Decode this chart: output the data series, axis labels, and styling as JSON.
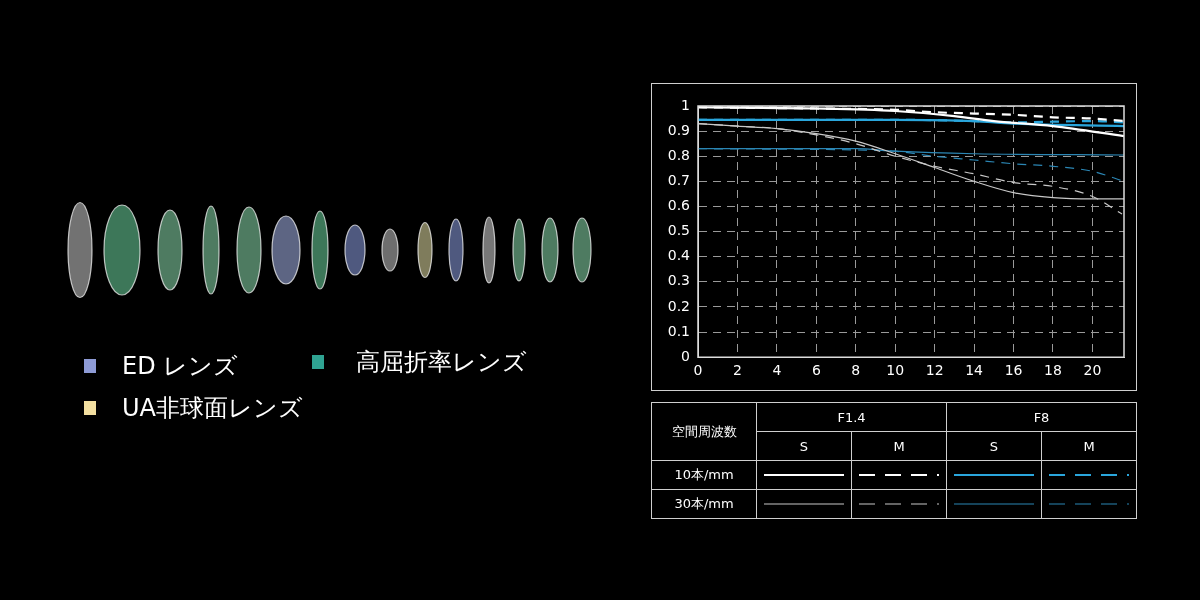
{
  "chart_data": {
    "type": "line",
    "xlim": [
      0,
      21.6
    ],
    "xticks": [
      0,
      2,
      4,
      6,
      8,
      10,
      12,
      14,
      16,
      18,
      20
    ],
    "ylim": [
      0,
      1
    ],
    "yticks": [
      0,
      0.1,
      0.2,
      0.3,
      0.4,
      0.5,
      0.6,
      0.7,
      0.8,
      0.9,
      1
    ],
    "grid": true,
    "series": [
      {
        "color": "#ffffff",
        "line_style": "solid",
        "x": [
          0,
          6,
          10,
          13,
          15,
          18,
          21.6
        ],
        "values": [
          0.995,
          0.99,
          0.98,
          0.96,
          0.94,
          0.92,
          0.88
        ]
      },
      {
        "color": "#ffffff",
        "line_style": "dashed",
        "x": [
          0,
          6,
          10,
          12,
          14,
          16,
          18,
          20,
          21.6
        ],
        "values": [
          0.995,
          0.99,
          0.985,
          0.975,
          0.97,
          0.965,
          0.955,
          0.95,
          0.94
        ]
      },
      {
        "color": "#2aa6dc",
        "line_style": "solid",
        "x": [
          0,
          10,
          14,
          16,
          21.6
        ],
        "values": [
          0.945,
          0.945,
          0.94,
          0.93,
          0.92
        ]
      },
      {
        "color": "#2aa6dc",
        "line_style": "dashed",
        "x": [
          0,
          10,
          14,
          16,
          20,
          21.6
        ],
        "values": [
          0.945,
          0.945,
          0.94,
          0.935,
          0.94,
          0.935
        ]
      },
      {
        "color": "#c8c8c8",
        "line_style": "solid",
        "x": [
          0,
          2,
          4,
          6,
          8,
          10,
          12,
          14,
          16,
          18,
          20,
          21.6
        ],
        "values": [
          0.93,
          0.92,
          0.91,
          0.89,
          0.86,
          0.81,
          0.755,
          0.7,
          0.655,
          0.635,
          0.63,
          0.63
        ]
      },
      {
        "color": "#c8c8c8",
        "line_style": "dashed",
        "x": [
          0,
          2,
          4,
          6,
          8,
          10,
          12,
          14,
          16,
          18,
          20,
          21.5
        ],
        "values": [
          0.93,
          0.92,
          0.91,
          0.885,
          0.85,
          0.8,
          0.76,
          0.73,
          0.695,
          0.68,
          0.64,
          0.57
        ]
      },
      {
        "color": "#2b86b4",
        "line_style": "solid",
        "x": [
          0,
          8,
          10,
          14,
          21.6
        ],
        "values": [
          0.83,
          0.83,
          0.82,
          0.81,
          0.805
        ]
      },
      {
        "color": "#2b86b4",
        "line_style": "dashed",
        "x": [
          0,
          8,
          10,
          12,
          14,
          16,
          18,
          20,
          21.6
        ],
        "values": [
          0.83,
          0.825,
          0.82,
          0.8,
          0.785,
          0.77,
          0.76,
          0.74,
          0.7
        ]
      }
    ],
    "annotations": [
      "空間周波数",
      "F1.4",
      "F8",
      "S",
      "M",
      "S",
      "M",
      "10本/mm",
      "30本/mm",
      "ED レンズ",
      "高屈折率レンズ",
      "UA非球面レンズ"
    ]
  }
}
